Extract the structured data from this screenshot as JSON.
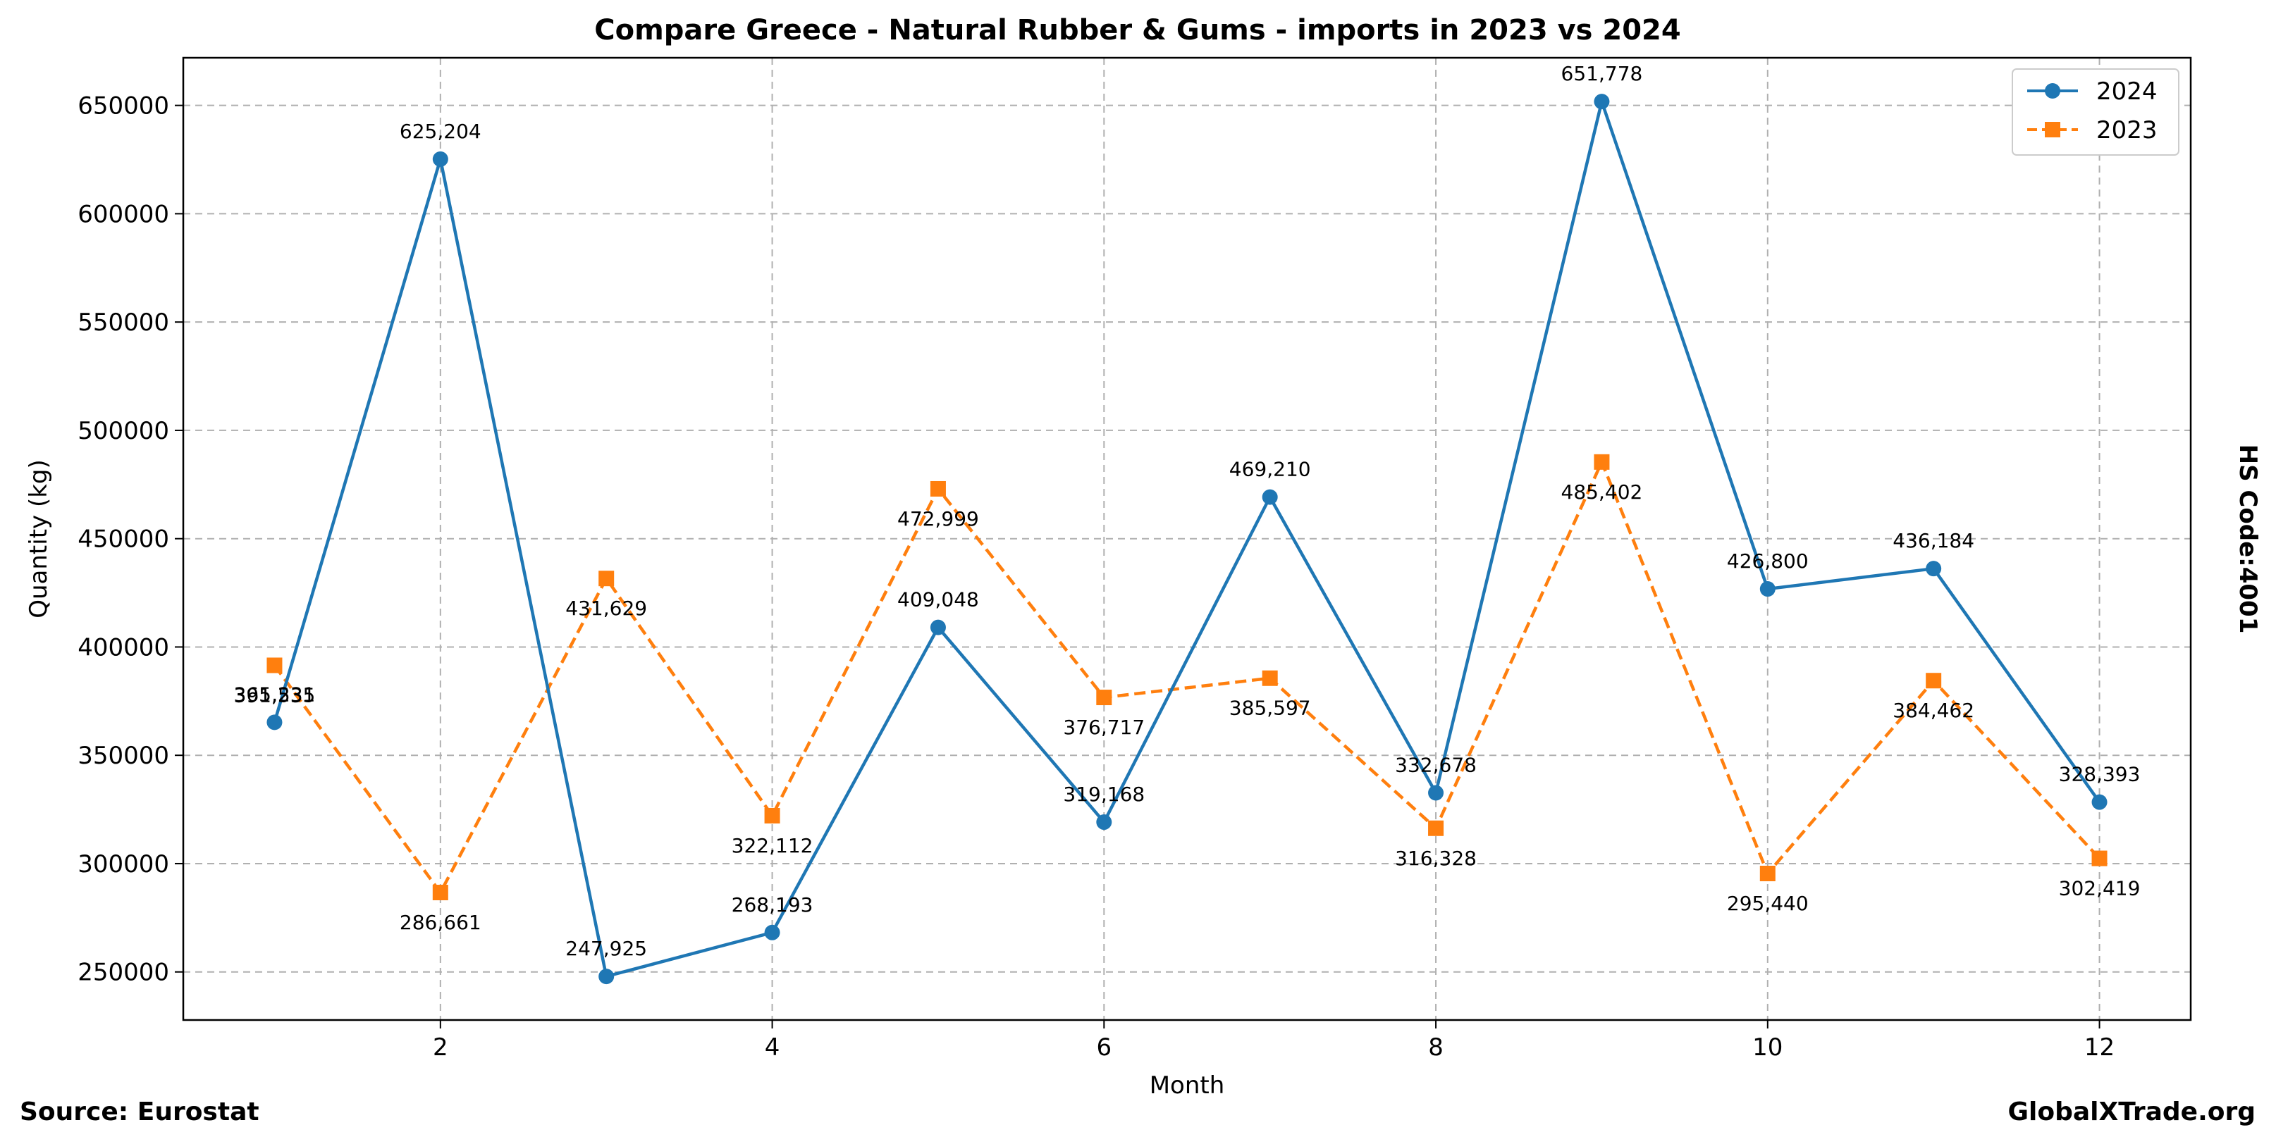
{
  "chart_data": {
    "type": "line",
    "title": "Compare Greece - Natural Rubber & Gums - imports in 2023 vs 2024",
    "xlabel": "Month",
    "ylabel": "Quantity (kg)",
    "x": [
      1,
      2,
      3,
      4,
      5,
      6,
      7,
      8,
      9,
      10,
      11,
      12
    ],
    "xticks": [
      2,
      4,
      6,
      8,
      10,
      12
    ],
    "yticks": [
      250000,
      300000,
      350000,
      400000,
      450000,
      500000,
      550000,
      600000,
      650000
    ],
    "xlim": [
      0.45,
      12.55
    ],
    "ylim": [
      227800,
      672000
    ],
    "grid": true,
    "legend_position": "top-right",
    "series": [
      {
        "name": "2024",
        "color": "#1f77b4",
        "marker": "circle",
        "linestyle": "solid",
        "values": [
          365231,
          625204,
          247925,
          268193,
          409048,
          319168,
          469210,
          332678,
          651778,
          426800,
          436184,
          328393
        ],
        "labels": [
          "365,231",
          "625,204",
          "247,925",
          "268,193",
          "409,048",
          "319,168",
          "469,210",
          "332,678",
          "651,778",
          "426,800",
          "436,184",
          "328,393"
        ]
      },
      {
        "name": "2023",
        "color": "#ff7f0e",
        "marker": "square",
        "linestyle": "dashed",
        "values": [
          391535,
          286661,
          431629,
          322112,
          472999,
          376717,
          385597,
          316328,
          485402,
          295440,
          384462,
          302419
        ],
        "labels": [
          "391,535",
          "286,661",
          "431,629",
          "322,112",
          "472,999",
          "376,717",
          "385,597",
          "316,328",
          "485,402",
          "295,440",
          "384,462",
          "302,419"
        ]
      }
    ]
  },
  "side_text": "HS Code:4001",
  "footer": {
    "source": "Source: Eurostat",
    "brand": "GlobalXTrade.org"
  }
}
